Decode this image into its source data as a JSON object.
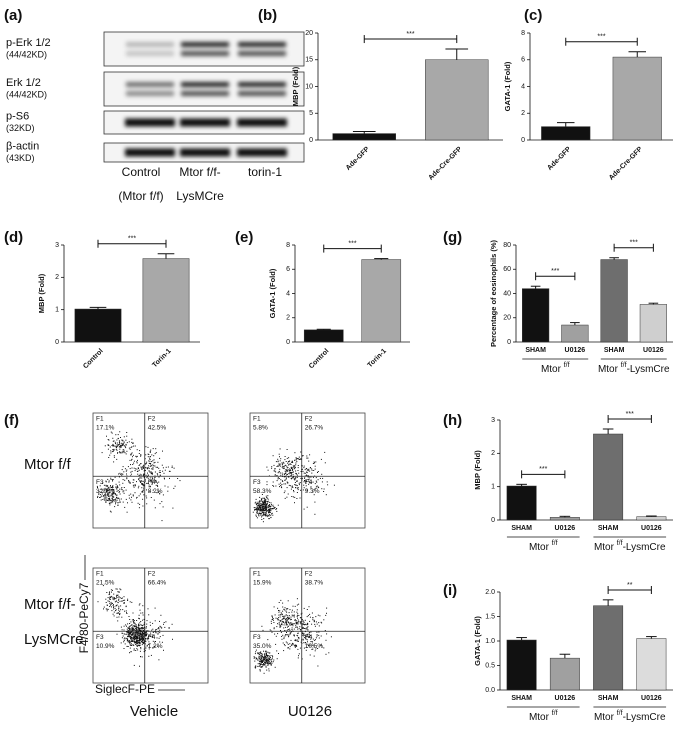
{
  "blot": {
    "panel": "(a)",
    "rows": [
      {
        "name": "p-Erk 1/2",
        "size": "(44/42KD)"
      },
      {
        "name": "Erk 1/2",
        "size": "(44/42KD)"
      },
      {
        "name": "p-S6",
        "size": "(32KD)"
      },
      {
        "name": "β-actin",
        "size": "(43KD)"
      }
    ],
    "columns": [
      [
        "Control",
        "(Mtor f/f)"
      ],
      [
        "Mtor f/f-",
        "LysMCre"
      ],
      [
        "torin-1"
      ]
    ]
  },
  "flow": {
    "panel": "(f)",
    "rows": [
      [
        "Mtor f/f"
      ],
      [
        "Mtor f/f-",
        "LysMCre"
      ]
    ],
    "columns": [
      "Vehicle",
      "U0126"
    ],
    "x_label": "SiglecF-PE",
    "y_label": "F4/80-PeCy7",
    "plots": [
      {
        "quadrants": [
          [
            "F1",
            "17.1%"
          ],
          [
            "F2",
            "42.5%"
          ],
          [
            "F3",
            "32.2%"
          ],
          [
            "F4",
            "8.2%"
          ]
        ]
      },
      {
        "quadrants": [
          [
            "F1",
            "5.8%"
          ],
          [
            "F2",
            "26.7%"
          ],
          [
            "F3",
            "58.3%"
          ],
          [
            "F4",
            "9.3%"
          ]
        ]
      },
      {
        "quadrants": [
          [
            "F1",
            "21.5%"
          ],
          [
            "F2",
            "66.4%"
          ],
          [
            "F3",
            "10.9%"
          ],
          [
            "F4",
            "1.2%"
          ]
        ]
      },
      {
        "quadrants": [
          [
            "F1",
            "15.9%"
          ],
          [
            "F2",
            "38.7%"
          ],
          [
            "F3",
            "35.0%"
          ],
          [
            "F4",
            "10.5%"
          ]
        ]
      }
    ]
  },
  "chart_data": [
    {
      "type": "bar",
      "panel": "(b)",
      "ylabel": "MBP (Fold)",
      "categories": [
        "Ade-GFP",
        "Ade-Cre-GFP"
      ],
      "values": [
        1.2,
        15
      ],
      "errors": [
        0.4,
        2
      ],
      "colors": [
        "#111111",
        "#a8a8a8"
      ],
      "ylim": [
        0,
        20
      ],
      "yticks": [
        0,
        5,
        10,
        15,
        20
      ],
      "significance": [
        {
          "label": "***",
          "pair": [
            0,
            1
          ]
        }
      ]
    },
    {
      "type": "bar",
      "panel": "(c)",
      "ylabel": "GATA-1 (Fold)",
      "categories": [
        "Ade-GFP",
        "Ade-Cre-GFP"
      ],
      "values": [
        1.0,
        6.2
      ],
      "errors": [
        0.3,
        0.4
      ],
      "colors": [
        "#111111",
        "#a8a8a8"
      ],
      "ylim": [
        0,
        8
      ],
      "yticks": [
        0,
        2,
        4,
        6,
        8
      ],
      "significance": [
        {
          "label": "***",
          "pair": [
            0,
            1
          ]
        }
      ]
    },
    {
      "type": "bar",
      "panel": "(d)",
      "ylabel": "MBP (Fold)",
      "categories": [
        "Control",
        "Torin-1"
      ],
      "values": [
        1.02,
        2.58
      ],
      "errors": [
        0.05,
        0.15
      ],
      "colors": [
        "#111111",
        "#a8a8a8"
      ],
      "ylim": [
        0,
        3
      ],
      "yticks": [
        0,
        1,
        2,
        3
      ],
      "significance": [
        {
          "label": "***",
          "pair": [
            0,
            1
          ]
        }
      ]
    },
    {
      "type": "bar",
      "panel": "(e)",
      "ylabel": "GATA-1 (Fold)",
      "categories": [
        "Control",
        "Torin-1"
      ],
      "values": [
        1.0,
        6.8
      ],
      "errors": [
        0.05,
        0.08
      ],
      "colors": [
        "#111111",
        "#a8a8a8"
      ],
      "ylim": [
        0,
        8
      ],
      "yticks": [
        0,
        2,
        4,
        6,
        8
      ],
      "significance": [
        {
          "label": "***",
          "pair": [
            0,
            1
          ]
        }
      ]
    },
    {
      "type": "bar",
      "panel": "(g)",
      "ylabel": "Percentage of eosinophils (%)",
      "categories": [
        "SHAM",
        "U0126",
        "SHAM",
        "U0126"
      ],
      "values": [
        44,
        14,
        68,
        31
      ],
      "errors": [
        2,
        2,
        1.5,
        1
      ],
      "colors": [
        "#111111",
        "#a0a0a0",
        "#6e6e6e",
        "#cfcfcf"
      ],
      "ylim": [
        0,
        80
      ],
      "yticks": [
        0,
        20,
        40,
        60,
        80
      ],
      "groups": [
        {
          "label": "Mtor ",
          "sup": "f/f",
          "suffix": "",
          "span": [
            0,
            1
          ]
        },
        {
          "label": "Mtor ",
          "sup": "f/f",
          "suffix": "-LysmCre",
          "span": [
            2,
            3
          ]
        }
      ],
      "significance": [
        {
          "label": "***",
          "pair": [
            0,
            1
          ]
        },
        {
          "label": "***",
          "pair": [
            2,
            3
          ]
        }
      ]
    },
    {
      "type": "bar",
      "panel": "(h)",
      "ylabel": "MBP (Fold)",
      "categories": [
        "SHAM",
        "U0126",
        "SHAM",
        "U0126"
      ],
      "values": [
        1.02,
        0.08,
        2.58,
        0.1
      ],
      "errors": [
        0.05,
        0.03,
        0.15,
        0.02
      ],
      "colors": [
        "#111111",
        "#a0a0a0",
        "#6e6e6e",
        "#cfcfcf"
      ],
      "ylim": [
        0,
        3
      ],
      "yticks": [
        0,
        1,
        2,
        3
      ],
      "groups": [
        {
          "label": "Mtor ",
          "sup": "f/f",
          "suffix": "",
          "span": [
            0,
            1
          ]
        },
        {
          "label": "Mtor ",
          "sup": "f/f",
          "suffix": "-LysmCre",
          "span": [
            2,
            3
          ]
        }
      ],
      "significance": [
        {
          "label": "***",
          "pair": [
            0,
            1
          ]
        },
        {
          "label": "***",
          "pair": [
            2,
            3
          ]
        }
      ]
    },
    {
      "type": "bar",
      "panel": "(i)",
      "ylabel": "GATA-1 (Fold)",
      "categories": [
        "SHAM",
        "U0126",
        "SHAM",
        "U0126"
      ],
      "values": [
        1.02,
        0.65,
        1.72,
        1.05
      ],
      "errors": [
        0.05,
        0.08,
        0.12,
        0.04
      ],
      "colors": [
        "#111111",
        "#a0a0a0",
        "#6e6e6e",
        "#dcdcdc"
      ],
      "ylim": [
        0,
        2
      ],
      "yticks": [
        {
          "value": 0,
          "label": "0.0"
        },
        0.5,
        {
          "value": 1,
          "label": "1.0"
        },
        1.5,
        {
          "value": 2,
          "label": "2.0"
        }
      ],
      "groups": [
        {
          "label": "Mtor ",
          "sup": "f/f",
          "suffix": "",
          "span": [
            0,
            1
          ]
        },
        {
          "label": "Mtor ",
          "sup": "f/f",
          "suffix": "-LysmCre",
          "span": [
            2,
            3
          ]
        }
      ],
      "significance": [
        {
          "label": "**",
          "pair": [
            2,
            3
          ]
        }
      ]
    }
  ]
}
